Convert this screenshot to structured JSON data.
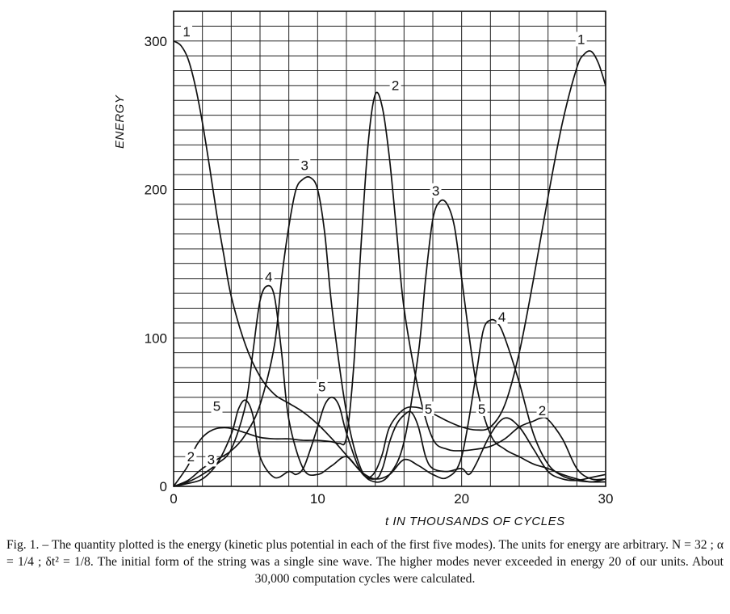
{
  "chart_data": {
    "type": "line",
    "title": "",
    "xlabel": "t IN THOUSANDS OF CYCLES",
    "ylabel": "ENERGY",
    "xlim": [
      0,
      30
    ],
    "ylim": [
      0,
      320
    ],
    "x_ticks": [
      0,
      10,
      20,
      30
    ],
    "y_ticks": [
      0,
      100,
      200,
      300
    ],
    "grid": true,
    "legend": "none",
    "series": [
      {
        "name": "1",
        "x": [
          0,
          0.5,
          1,
          1.5,
          2,
          2.5,
          3,
          3.5,
          4,
          5,
          6,
          7,
          8,
          9,
          10,
          11,
          12,
          13,
          13.5,
          14,
          14.5,
          15,
          16,
          17,
          18,
          19,
          20,
          21,
          22,
          23,
          24,
          25,
          26,
          27,
          28,
          28.5,
          29,
          29.5,
          30
        ],
        "y": [
          300,
          297,
          288,
          270,
          245,
          215,
          183,
          155,
          128,
          95,
          74,
          62,
          56,
          50,
          42,
          32,
          21,
          10,
          6,
          10,
          22,
          40,
          52,
          53,
          49,
          44,
          40,
          38,
          40,
          55,
          90,
          140,
          195,
          245,
          282,
          291,
          293,
          285,
          270
        ]
      },
      {
        "name": "2",
        "x": [
          0,
          1,
          1.5,
          2,
          2.5,
          3,
          3.5,
          4,
          5,
          6,
          7,
          8,
          9,
          10,
          11,
          11.5,
          12,
          12.5,
          13,
          13.5,
          14,
          14.5,
          15,
          15.5,
          16,
          17,
          18,
          19,
          20,
          21,
          22,
          23,
          24,
          25,
          25.5,
          26,
          27,
          28,
          29,
          30
        ],
        "y": [
          0,
          14,
          26,
          33,
          37,
          39,
          39.5,
          39,
          36,
          33,
          32,
          32,
          31,
          31,
          30,
          29,
          33,
          80,
          160,
          230,
          264,
          255,
          220,
          170,
          120,
          65,
          32,
          25,
          24,
          25,
          27,
          32,
          40,
          44,
          46,
          45,
          32,
          12,
          5,
          5
        ]
      },
      {
        "name": "3",
        "x": [
          0,
          1,
          2,
          3,
          4,
          5,
          6,
          7,
          7.5,
          8,
          8.5,
          9,
          9.5,
          10,
          10.5,
          11,
          12,
          13,
          14,
          15,
          16,
          17,
          17.5,
          18,
          18.5,
          19,
          19.5,
          20,
          21,
          22,
          23,
          24,
          25,
          26,
          27,
          28,
          29,
          30
        ],
        "y": [
          0,
          4,
          12,
          18,
          24,
          35,
          55,
          95,
          140,
          175,
          200,
          207,
          208,
          200,
          170,
          120,
          50,
          12,
          3,
          8,
          30,
          90,
          140,
          180,
          192,
          190,
          175,
          140,
          70,
          35,
          25,
          20,
          15,
          12,
          8,
          5,
          3,
          5
        ]
      },
      {
        "name": "4",
        "x": [
          0,
          1,
          2,
          3,
          4,
          5,
          5.5,
          6,
          6.5,
          7,
          7.5,
          8,
          9,
          10,
          11,
          12,
          13,
          14,
          15,
          16,
          17,
          18,
          19,
          20,
          21,
          21.5,
          22,
          22.5,
          23,
          24,
          25,
          26,
          27,
          28,
          29,
          30
        ],
        "y": [
          0,
          3,
          8,
          15,
          25,
          55,
          90,
          125,
          135,
          128,
          90,
          45,
          12,
          8,
          14,
          20,
          10,
          5,
          8,
          18,
          14,
          8,
          6,
          20,
          75,
          105,
          112,
          110,
          100,
          70,
          35,
          15,
          7,
          4,
          3,
          3
        ]
      },
      {
        "name": "5",
        "x": [
          0,
          1,
          2,
          3,
          4,
          4.5,
          5,
          5.5,
          6,
          7,
          8,
          8.5,
          9,
          9.5,
          10,
          10.5,
          11,
          11.5,
          12,
          13,
          14,
          14.5,
          15,
          15.5,
          16,
          16.5,
          17,
          17.5,
          18,
          19,
          20,
          20.5,
          21,
          22,
          23,
          24,
          25,
          26,
          27,
          28,
          29,
          30
        ],
        "y": [
          0,
          2,
          5,
          15,
          35,
          52,
          58,
          48,
          20,
          6,
          10,
          8,
          12,
          25,
          40,
          55,
          60,
          54,
          36,
          10,
          5,
          12,
          30,
          42,
          48,
          50,
          40,
          20,
          12,
          10,
          12,
          8,
          15,
          35,
          46,
          40,
          25,
          10,
          5,
          4,
          6,
          8
        ]
      }
    ],
    "annotations": [
      {
        "text": "1",
        "x": 0.9,
        "y": 303
      },
      {
        "text": "1",
        "x": 28.3,
        "y": 298
      },
      {
        "text": "2",
        "x": 15.4,
        "y": 267
      },
      {
        "text": "2",
        "x": 1.2,
        "y": 17
      },
      {
        "text": "2",
        "x": 25.6,
        "y": 48
      },
      {
        "text": "3",
        "x": 9.1,
        "y": 213
      },
      {
        "text": "3",
        "x": 18.2,
        "y": 196
      },
      {
        "text": "3",
        "x": 2.6,
        "y": 15
      },
      {
        "text": "4",
        "x": 6.6,
        "y": 138
      },
      {
        "text": "4",
        "x": 22.8,
        "y": 111
      },
      {
        "text": "5",
        "x": 3.0,
        "y": 51
      },
      {
        "text": "5",
        "x": 10.3,
        "y": 64
      },
      {
        "text": "5",
        "x": 17.7,
        "y": 49
      },
      {
        "text": "5",
        "x": 21.4,
        "y": 49
      }
    ]
  },
  "caption": {
    "text": "Fig. 1. – The quantity plotted is the energy (kinetic plus potential in each of the first five modes). The units for energy are arbitrary.  N = 32 ; α = 1/4 ; δt² = 1/8.  The initial form of the string was a single sine wave.  The higher modes never exceeded in energy 20 of our units.  About 30,000 computation cycles were calculated."
  }
}
